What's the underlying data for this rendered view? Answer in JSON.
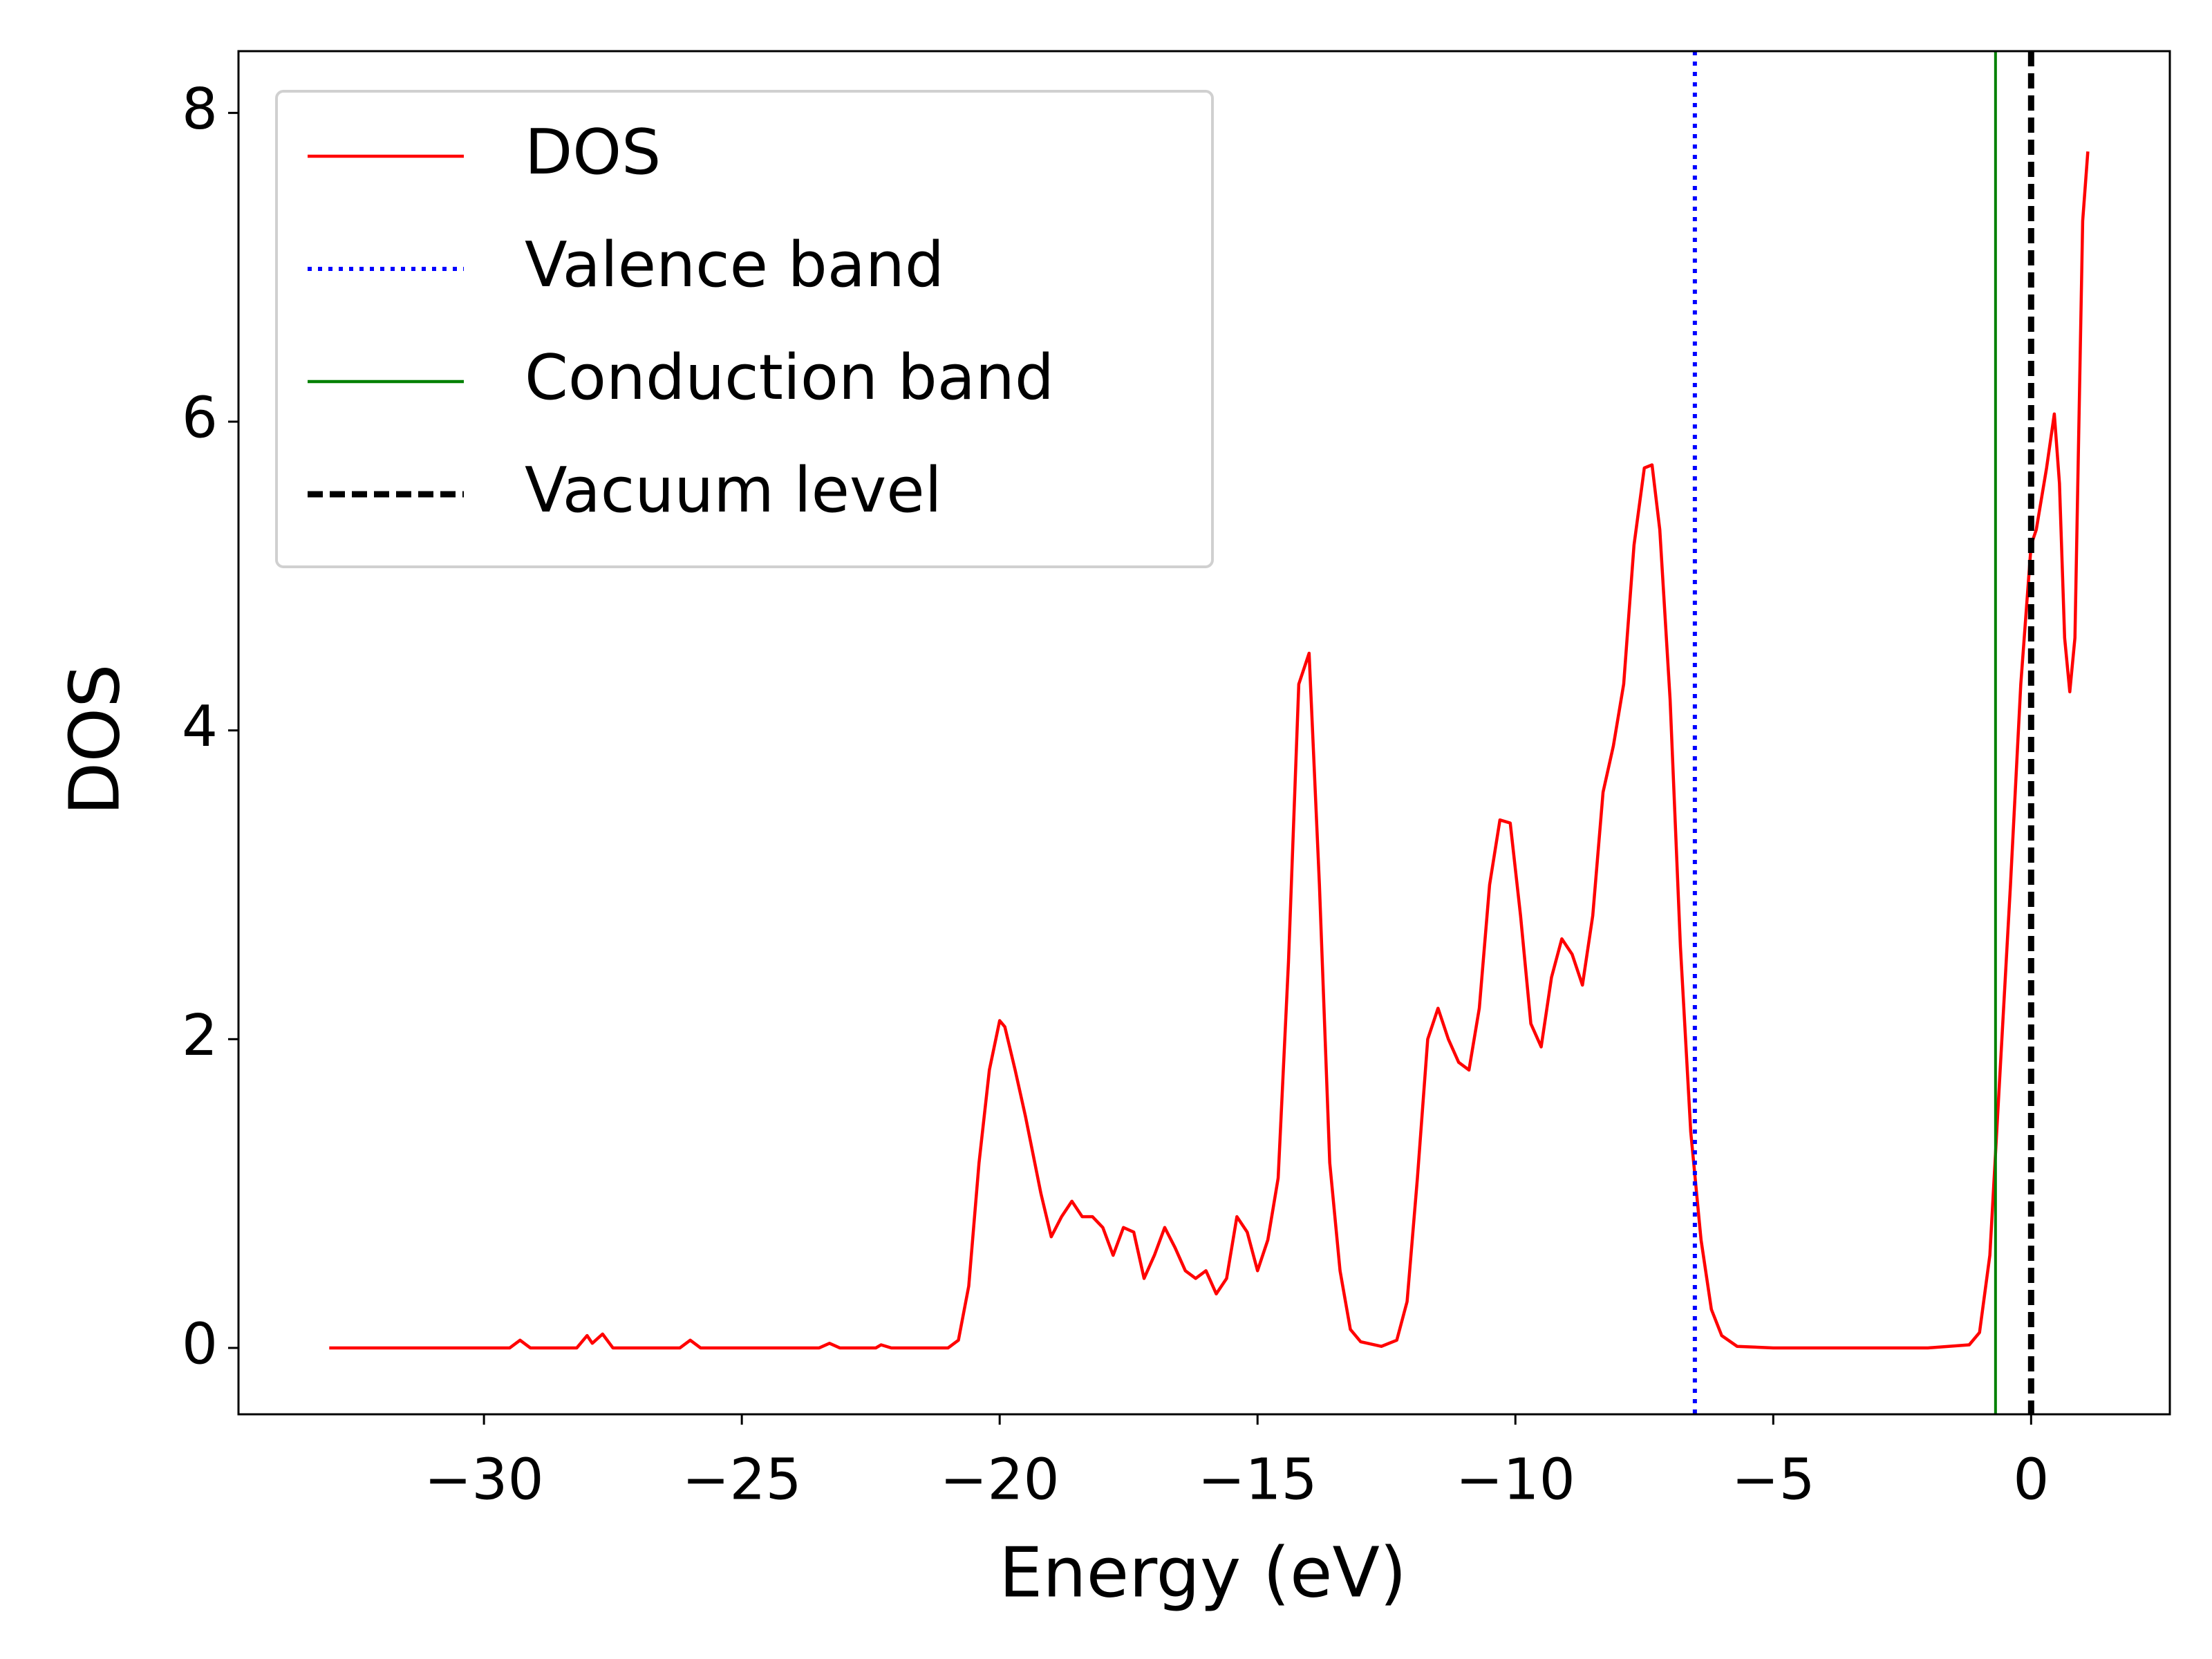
{
  "chart_data": {
    "type": "line",
    "xlabel": "Energy (eV)",
    "ylabel": "DOS",
    "xlim": [
      -34.76,
      2.69
    ],
    "ylim": [
      -0.43,
      8.4
    ],
    "xticks": [
      {
        "value": -30,
        "label": "−30"
      },
      {
        "value": -25,
        "label": "−25"
      },
      {
        "value": -20,
        "label": "−20"
      },
      {
        "value": -15,
        "label": "−15"
      },
      {
        "value": -10,
        "label": "−10"
      },
      {
        "value": -5,
        "label": "−5"
      },
      0
    ],
    "yticks": [
      0,
      2,
      4,
      6,
      8
    ],
    "grid": false,
    "legend": "upper left",
    "x": [
      -33,
      -29.5,
      -29.3,
      -29.1,
      -28.2,
      -28.0,
      -27.9,
      -27.7,
      -27.5,
      -26.2,
      -26.0,
      -25.8,
      -23.5,
      -23.3,
      -23.1,
      -22.4,
      -22.3,
      -22.1,
      -21.0,
      -20.8,
      -20.6,
      -20.4,
      -20.2,
      -20.0,
      -19.9,
      -19.7,
      -19.5,
      -19.2,
      -19.0,
      -18.8,
      -18.6,
      -18.4,
      -18.2,
      -18.0,
      -17.8,
      -17.6,
      -17.4,
      -17.2,
      -17.0,
      -16.8,
      -16.6,
      -16.4,
      -16.2,
      -16.0,
      -15.8,
      -15.6,
      -15.4,
      -15.2,
      -15.0,
      -14.8,
      -14.6,
      -14.4,
      -14.2,
      -14.0,
      -13.8,
      -13.6,
      -13.4,
      -13.2,
      -13.0,
      -12.6,
      -12.3,
      -12.1,
      -11.9,
      -11.7,
      -11.5,
      -11.3,
      -11.1,
      -10.9,
      -10.7,
      -10.5,
      -10.3,
      -10.1,
      -9.9,
      -9.7,
      -9.5,
      -9.3,
      -9.1,
      -8.9,
      -8.7,
      -8.5,
      -8.3,
      -8.1,
      -7.9,
      -7.7,
      -7.5,
      -7.35,
      -7.2,
      -7.0,
      -6.8,
      -6.6,
      -6.4,
      -6.2,
      -6.0,
      -5.7,
      -5.0,
      -2.0,
      -1.2,
      -1.0,
      -0.8,
      -0.6,
      -0.4,
      -0.2,
      0.0,
      0.1,
      0.3,
      0.45,
      0.55,
      0.65,
      0.75,
      0.85,
      1.0,
      1.1
    ],
    "series": [
      {
        "name": "DOS",
        "color": "#ff0000",
        "values": [
          0,
          0,
          0.05,
          0,
          0,
          0.08,
          0.03,
          0.09,
          0,
          0,
          0.05,
          0,
          0,
          0.03,
          0,
          0,
          0.02,
          0,
          0,
          0.05,
          0.4,
          1.2,
          1.8,
          2.12,
          2.08,
          1.8,
          1.5,
          1.0,
          0.72,
          0.85,
          0.95,
          0.85,
          0.85,
          0.78,
          0.6,
          0.78,
          0.75,
          0.45,
          0.6,
          0.78,
          0.65,
          0.5,
          0.45,
          0.5,
          0.35,
          0.45,
          0.85,
          0.75,
          0.5,
          0.7,
          1.1,
          2.5,
          4.3,
          4.5,
          3.0,
          1.2,
          0.5,
          0.12,
          0.04,
          0.01,
          0.05,
          0.3,
          1.1,
          2.0,
          2.2,
          2.0,
          1.85,
          1.8,
          2.2,
          3.0,
          3.42,
          3.4,
          2.8,
          2.1,
          1.95,
          2.4,
          2.65,
          2.55,
          2.35,
          2.8,
          3.6,
          3.9,
          4.3,
          5.2,
          5.7,
          5.72,
          5.3,
          4.2,
          2.6,
          1.4,
          0.7,
          0.25,
          0.08,
          0.01,
          0,
          0,
          0.02,
          0.1,
          0.6,
          1.8,
          3.0,
          4.3,
          5.2,
          5.3,
          5.7,
          6.05,
          5.6,
          4.6,
          4.25,
          4.6,
          7.3,
          7.75
        ]
      }
    ],
    "vlines": [
      {
        "name": "Valence band",
        "color": "#0000ff",
        "x": -6.52,
        "style": "dotted"
      },
      {
        "name": "Conduction band",
        "color": "#008000",
        "x": -0.69,
        "style": "solid"
      },
      {
        "name": "Vacuum level",
        "color": "#000000",
        "x": 0,
        "style": "dashed"
      }
    ]
  }
}
